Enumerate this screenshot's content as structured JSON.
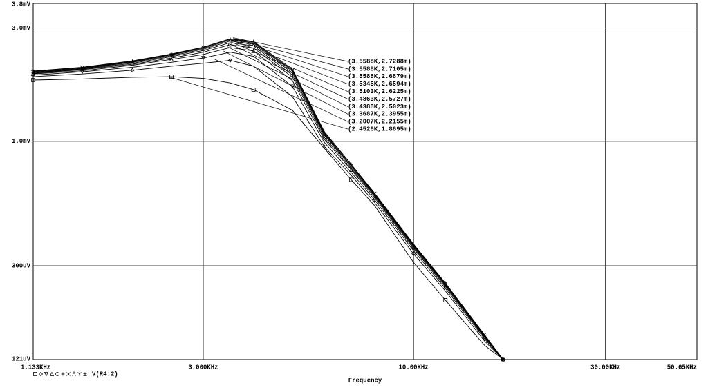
{
  "chart_data": {
    "type": "line",
    "xlabel": "Frequency",
    "log_x": true,
    "log_y": true,
    "grid": true,
    "color": "#000000",
    "xlim": [
      1133,
      50650
    ],
    "xticks": [
      {
        "value": 1133,
        "label": "1.133KHz"
      },
      {
        "value": 3000,
        "label": "3.000KHz"
      },
      {
        "value": 10000,
        "label": "10.00KHz"
      },
      {
        "value": 30000,
        "label": "30.00KHz"
      },
      {
        "value": 50650,
        "label": "50.65KHz"
      }
    ],
    "ylim": [
      0.121,
      3.8
    ],
    "yticks": [
      {
        "value": 0.121,
        "label": "121uV"
      },
      {
        "value": 0.3,
        "label": "300uV"
      },
      {
        "value": 1,
        "label": "1.0mV"
      },
      {
        "value": 3,
        "label": "3.0mV"
      },
      {
        "value": 3.8,
        "label": "3.8mV"
      }
    ],
    "legend_label": "V(R4:2)",
    "x": [
      1133,
      1500,
      2000,
      2500,
      3000,
      3500,
      4000,
      5000,
      6000,
      7000,
      8000,
      10000,
      12000,
      15000,
      16700
    ],
    "series": [
      {
        "marker": "square",
        "values": [
          1.81,
          1.83,
          1.86,
          1.87,
          1.84,
          1.76,
          1.65,
          1.35,
          0.935,
          0.69,
          0.537,
          0.31,
          0.215,
          0.139,
          0.121
        ]
      },
      {
        "marker": "diamond",
        "values": [
          1.87,
          1.92,
          1.99,
          2.07,
          2.13,
          2.19,
          2.07,
          1.54,
          0.95,
          0.72,
          0.553,
          0.337,
          0.235,
          0.145,
          0.121
        ]
      },
      {
        "marker": "triangle-down",
        "values": [
          1.9,
          1.96,
          2.05,
          2.15,
          2.24,
          2.37,
          2.28,
          1.7,
          0.99,
          0.74,
          0.568,
          0.347,
          0.241,
          0.148,
          0.121
        ]
      },
      {
        "marker": "triangle-up",
        "values": [
          1.92,
          1.98,
          2.09,
          2.21,
          2.32,
          2.48,
          2.4,
          1.8,
          1.02,
          0.76,
          0.58,
          0.354,
          0.245,
          0.15,
          0.121
        ]
      },
      {
        "marker": "circle",
        "values": [
          1.93,
          2.0,
          2.11,
          2.24,
          2.37,
          2.55,
          2.47,
          1.86,
          1.04,
          0.77,
          0.588,
          0.358,
          0.248,
          0.151,
          0.121
        ]
      },
      {
        "marker": "plus",
        "values": [
          1.94,
          2.01,
          2.13,
          2.27,
          2.41,
          2.6,
          2.52,
          1.9,
          1.06,
          0.78,
          0.594,
          0.362,
          0.25,
          0.152,
          0.121
        ]
      },
      {
        "marker": "cross",
        "values": [
          1.95,
          2.02,
          2.15,
          2.29,
          2.44,
          2.64,
          2.56,
          1.94,
          1.07,
          0.79,
          0.598,
          0.364,
          0.251,
          0.153,
          0.121
        ]
      },
      {
        "marker": "lambda",
        "values": [
          1.96,
          2.03,
          2.16,
          2.31,
          2.46,
          2.67,
          2.59,
          1.97,
          1.08,
          0.79,
          0.6,
          0.366,
          0.252,
          0.153,
          0.121
        ]
      },
      {
        "marker": "y",
        "values": [
          1.97,
          2.04,
          2.17,
          2.32,
          2.48,
          2.69,
          2.61,
          1.99,
          1.09,
          0.8,
          0.603,
          0.368,
          0.253,
          0.154,
          0.121
        ]
      },
      {
        "marker": "plusminus",
        "values": [
          1.975,
          2.05,
          2.18,
          2.33,
          2.49,
          2.7,
          2.63,
          2.01,
          1.1,
          0.8,
          0.606,
          0.37,
          0.254,
          0.154,
          0.121
        ]
      }
    ],
    "annotations": [
      {
        "label": "(3.5588K,2.7288m)",
        "x": 3558.8,
        "y": 2.7288
      },
      {
        "label": "(3.5588K,2.7105m)",
        "x": 3558.8,
        "y": 2.7105
      },
      {
        "label": "(3.5588K,2.6879m)",
        "x": 3558.8,
        "y": 2.6879
      },
      {
        "label": "(3.5345K,2.6594m)",
        "x": 3534.5,
        "y": 2.6594
      },
      {
        "label": "(3.5103K,2.6225m)",
        "x": 3510.3,
        "y": 2.6225
      },
      {
        "label": "(3.4863K,2.5727m)",
        "x": 3486.3,
        "y": 2.5727
      },
      {
        "label": "(3.4388K,2.5023m)",
        "x": 3438.8,
        "y": 2.5023
      },
      {
        "label": "(3.3687K,2.3955m)",
        "x": 3368.7,
        "y": 2.3955
      },
      {
        "label": "(3.2007K,2.2155m)",
        "x": 3200.7,
        "y": 2.2155
      },
      {
        "label": "(2.4526K,1.8695m)",
        "x": 2452.6,
        "y": 1.8695
      }
    ]
  }
}
